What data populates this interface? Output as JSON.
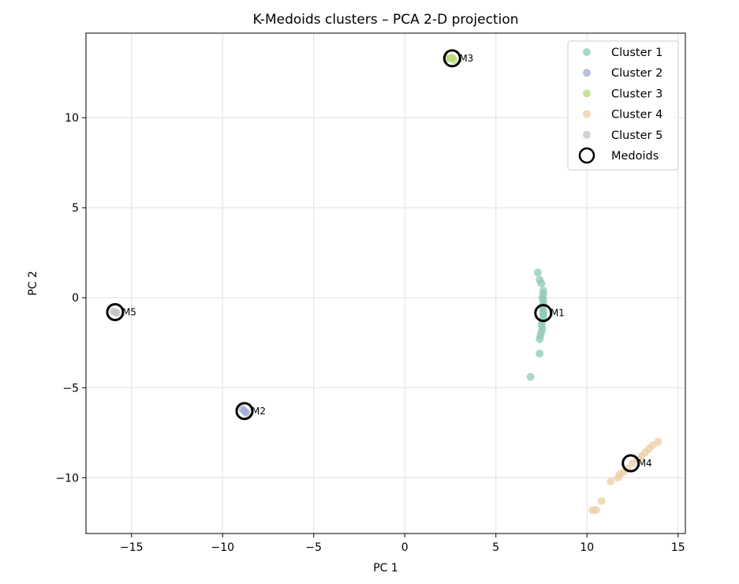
{
  "chart_data": {
    "type": "scatter",
    "title": "K-Medoids clusters – PCA 2-D projection",
    "xlabel": "PC 1",
    "ylabel": "PC 2",
    "xlim": [
      -17.5,
      15.4
    ],
    "ylim": [
      -13.1,
      14.7
    ],
    "xticks": [
      -15,
      -10,
      -5,
      0,
      5,
      10,
      15
    ],
    "yticks": [
      -10,
      -5,
      0,
      5,
      10
    ],
    "xtick_labels": [
      "−15",
      "−10",
      "−5",
      "0",
      "5",
      "10",
      "15"
    ],
    "ytick_labels": [
      "−10",
      "−5",
      "0",
      "5",
      "10"
    ],
    "grid": true,
    "legend_position": "top-right",
    "series": [
      {
        "name": "Cluster 1",
        "color": "#8fc9b4",
        "points": [
          [
            7.3,
            1.4
          ],
          [
            7.4,
            1.0
          ],
          [
            7.5,
            0.8
          ],
          [
            7.6,
            0.4
          ],
          [
            7.6,
            0.2
          ],
          [
            7.55,
            0.0
          ],
          [
            7.6,
            -0.1
          ],
          [
            7.6,
            -0.3
          ],
          [
            7.55,
            -0.5
          ],
          [
            7.6,
            -0.7
          ],
          [
            7.6,
            -0.9
          ],
          [
            7.6,
            -1.1
          ],
          [
            7.55,
            -1.3
          ],
          [
            7.5,
            -1.5
          ],
          [
            7.55,
            -1.7
          ],
          [
            7.5,
            -1.9
          ],
          [
            7.45,
            -2.1
          ],
          [
            7.4,
            -2.3
          ],
          [
            7.4,
            -3.1
          ],
          [
            6.9,
            -4.4
          ],
          [
            7.6,
            -0.85
          ]
        ]
      },
      {
        "name": "Cluster 2",
        "color": "#a2aad6",
        "points": [
          [
            -8.8,
            -6.3
          ],
          [
            -8.9,
            -6.2
          ],
          [
            -8.7,
            -6.4
          ]
        ]
      },
      {
        "name": "Cluster 3",
        "color": "#b9d778",
        "points": [
          [
            2.3,
            13.3
          ],
          [
            2.5,
            13.3
          ],
          [
            2.7,
            13.2
          ],
          [
            2.6,
            13.35
          ]
        ]
      },
      {
        "name": "Cluster 4",
        "color": "#eccea5",
        "points": [
          [
            13.9,
            -8.0
          ],
          [
            13.6,
            -8.2
          ],
          [
            13.4,
            -8.4
          ],
          [
            13.2,
            -8.6
          ],
          [
            13.0,
            -8.8
          ],
          [
            12.8,
            -9.0
          ],
          [
            12.5,
            -9.2
          ],
          [
            12.2,
            -9.5
          ],
          [
            12.0,
            -9.7
          ],
          [
            11.8,
            -9.8
          ],
          [
            11.7,
            -10.0
          ],
          [
            11.3,
            -10.2
          ],
          [
            10.8,
            -11.3
          ],
          [
            10.5,
            -11.8
          ],
          [
            10.3,
            -11.8
          ]
        ]
      },
      {
        "name": "Cluster 5",
        "color": "#c3c3c3",
        "points": [
          [
            -15.9,
            -0.8
          ],
          [
            -15.8,
            -0.85
          ],
          [
            -16.0,
            -0.75
          ]
        ]
      }
    ],
    "medoids": {
      "name": "Medoids",
      "points": [
        {
          "label": "M1",
          "x": 7.6,
          "y": -0.85
        },
        {
          "label": "M2",
          "x": -8.8,
          "y": -6.3
        },
        {
          "label": "M3",
          "x": 2.6,
          "y": 13.3
        },
        {
          "label": "M4",
          "x": 12.4,
          "y": -9.2
        },
        {
          "label": "M5",
          "x": -15.9,
          "y": -0.8
        }
      ]
    }
  }
}
